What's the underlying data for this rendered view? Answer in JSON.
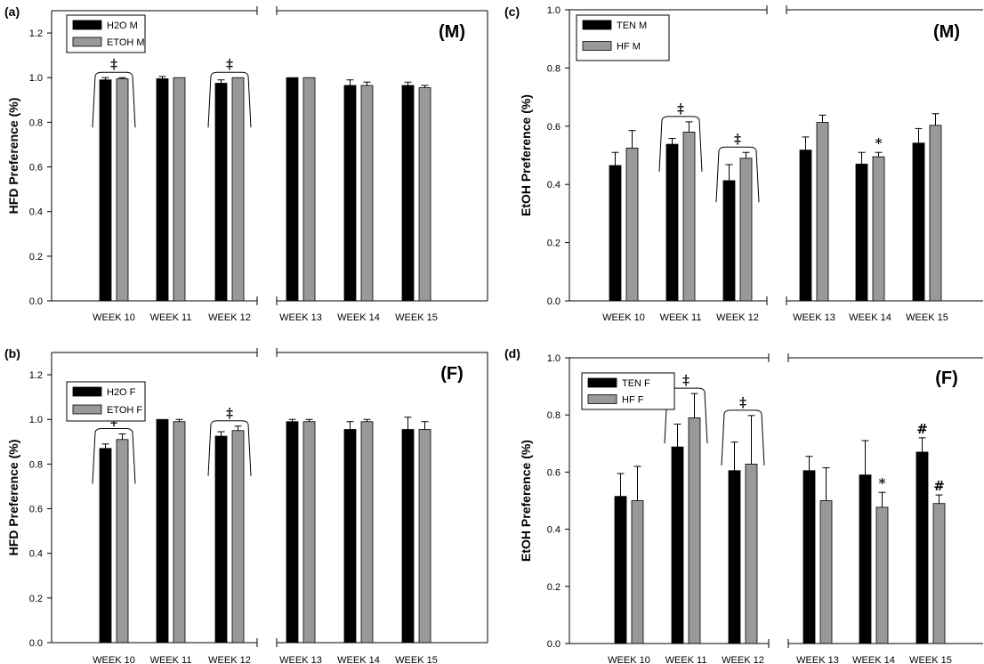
{
  "chart_data": [
    {
      "type": "bar",
      "panel": "(a)",
      "sex_label": "(M)",
      "ylabel": "HFD Preference (%)",
      "ylim": [
        0,
        1.3
      ],
      "yticks": [
        "0.0",
        "0.2",
        "0.4",
        "0.6",
        "0.8",
        "1.0",
        "1.2"
      ],
      "categories": [
        "WEEK 10",
        "WEEK 11",
        "WEEK 12",
        "WEEK 13",
        "WEEK 14",
        "WEEK 15"
      ],
      "series": [
        {
          "name": "H2O M",
          "color": "#000000",
          "values": [
            0.99,
            0.995,
            0.975,
            1.0,
            0.965,
            0.965
          ],
          "errors": [
            0.01,
            0.01,
            0.015,
            0.0,
            0.025,
            0.015
          ]
        },
        {
          "name": "ETOH M",
          "color": "#999999",
          "values": [
            0.995,
            1.0,
            1.0,
            1.0,
            0.965,
            0.955
          ],
          "errors": [
            0.005,
            0.0,
            0.0,
            0.0,
            0.015,
            0.01
          ]
        }
      ],
      "group_markers": [
        {
          "week": "WEEK 10",
          "symbol": "‡"
        },
        {
          "week": "WEEK 12",
          "symbol": "‡"
        }
      ],
      "bar_markers": []
    },
    {
      "type": "bar",
      "panel": "(b)",
      "sex_label": "(F)",
      "ylabel": "HFD Preference (%)",
      "ylim": [
        0,
        1.3
      ],
      "yticks": [
        "0.0",
        "0.2",
        "0.4",
        "0.6",
        "0.8",
        "1.0",
        "1.2"
      ],
      "categories": [
        "WEEK 10",
        "WEEK 11",
        "WEEK 12",
        "WEEK 13",
        "WEEK 14",
        "WEEK 15"
      ],
      "series": [
        {
          "name": "H2O F",
          "color": "#000000",
          "values": [
            0.87,
            1.0,
            0.925,
            0.99,
            0.955,
            0.955
          ],
          "errors": [
            0.02,
            0.0,
            0.02,
            0.01,
            0.035,
            0.055
          ]
        },
        {
          "name": "ETOH  F",
          "color": "#999999",
          "values": [
            0.91,
            0.99,
            0.95,
            0.99,
            0.99,
            0.955
          ],
          "errors": [
            0.025,
            0.01,
            0.02,
            0.01,
            0.01,
            0.035
          ]
        }
      ],
      "group_markers": [
        {
          "week": "WEEK 10",
          "symbol": "‡"
        },
        {
          "week": "WEEK 12",
          "symbol": "‡"
        }
      ],
      "bar_markers": []
    },
    {
      "type": "bar",
      "panel": "(c)",
      "sex_label": "(M)",
      "ylabel": "EtOH Preference (%)",
      "ylim": [
        0,
        1.0
      ],
      "yticks": [
        "0.0",
        "0.2",
        "0.4",
        "0.6",
        "0.8",
        "1.0"
      ],
      "categories": [
        "WEEK 10",
        "WEEK 11",
        "WEEK 12",
        "WEEK 13",
        "WEEK 14",
        "WEEK 15"
      ],
      "series": [
        {
          "name": "TEN M",
          "color": "#000000",
          "values": [
            0.465,
            0.538,
            0.413,
            0.518,
            0.47,
            0.542
          ],
          "errors": [
            0.045,
            0.02,
            0.055,
            0.045,
            0.04,
            0.05
          ]
        },
        {
          "name": "HF M",
          "color": "#999999",
          "values": [
            0.525,
            0.58,
            0.49,
            0.613,
            0.495,
            0.603
          ],
          "errors": [
            0.06,
            0.035,
            0.02,
            0.025,
            0.015,
            0.04
          ]
        }
      ],
      "group_markers": [
        {
          "week": "WEEK 11",
          "symbol": "‡"
        },
        {
          "week": "WEEK 12",
          "symbol": "‡"
        }
      ],
      "bar_markers": [
        {
          "week": "WEEK 14",
          "series": 1,
          "symbol": "*"
        }
      ]
    },
    {
      "type": "bar",
      "panel": "(d)",
      "sex_label": "(F)",
      "ylabel": "EtOH Preference (%)",
      "ylim": [
        0,
        1.0
      ],
      "yticks": [
        "0.0",
        "0.2",
        "0.4",
        "0.6",
        "0.8",
        "1.0"
      ],
      "categories": [
        "WEEK 10",
        "WEEK 11",
        "WEEK 12",
        "WEEK 13",
        "WEEK 14",
        "WEEK 15"
      ],
      "series": [
        {
          "name": "TEN F",
          "color": "#000000",
          "values": [
            0.515,
            0.688,
            0.605,
            0.605,
            0.59,
            0.67
          ],
          "errors": [
            0.08,
            0.08,
            0.1,
            0.05,
            0.12,
            0.05
          ]
        },
        {
          "name": "HF F",
          "color": "#999999",
          "values": [
            0.5,
            0.79,
            0.628,
            0.5,
            0.477,
            0.49
          ],
          "errors": [
            0.12,
            0.085,
            0.17,
            0.115,
            0.052,
            0.03
          ]
        }
      ],
      "group_markers": [
        {
          "week": "WEEK 11",
          "symbol": "‡"
        },
        {
          "week": "WEEK 12",
          "symbol": "‡"
        }
      ],
      "bar_markers": [
        {
          "week": "WEEK 14",
          "series": 1,
          "symbol": "*"
        },
        {
          "week": "WEEK 15",
          "series": 0,
          "symbol": "#"
        },
        {
          "week": "WEEK 15",
          "series": 1,
          "symbol": "#"
        }
      ]
    }
  ]
}
